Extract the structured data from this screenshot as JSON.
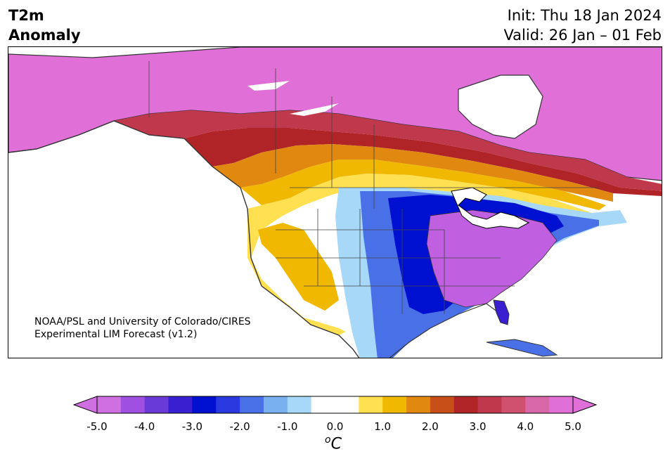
{
  "header": {
    "title_line1": "T2m",
    "title_line2": "Anomaly",
    "init_label": "Init: Thu 18 Jan 2024",
    "valid_label": "Valid: 26 Jan – 01 Feb"
  },
  "credit": {
    "line1": "NOAA/PSL and University of Colorado/CIRES",
    "line2": "Experimental LIM Forecast (v1.2)"
  },
  "colorbar": {
    "units_base": "C",
    "units_sup": "o",
    "ticks": [
      "-5.0",
      "-4.0",
      "-3.0",
      "-2.0",
      "-1.0",
      "0.0",
      "1.0",
      "2.0",
      "3.0",
      "4.0",
      "5.0"
    ],
    "colors": [
      "#d070e0",
      "#a050e0",
      "#6a3ad8",
      "#3a1fd0",
      "#0010d0",
      "#2a3ae0",
      "#4a70e8",
      "#78b0f0",
      "#a8d8f8",
      "#ffffff",
      "#ffffff",
      "#ffe050",
      "#f0b800",
      "#e08810",
      "#c85018",
      "#b02428",
      "#c0384c",
      "#d05070",
      "#d868a8",
      "#e070d8"
    ]
  },
  "map": {
    "region": "North America",
    "palette": {
      "strong_warm": "#e070d8",
      "warm_red": "#b02428",
      "warm_orange": "#e08810",
      "warm_yellow": "#ffe050",
      "neutral": "#ffffff",
      "cool_light": "#a8d8f8",
      "cool_mid": "#4a70e8",
      "cool_deep": "#0010d0",
      "cold_purple": "#c060e0",
      "land_border": "#333333"
    }
  }
}
